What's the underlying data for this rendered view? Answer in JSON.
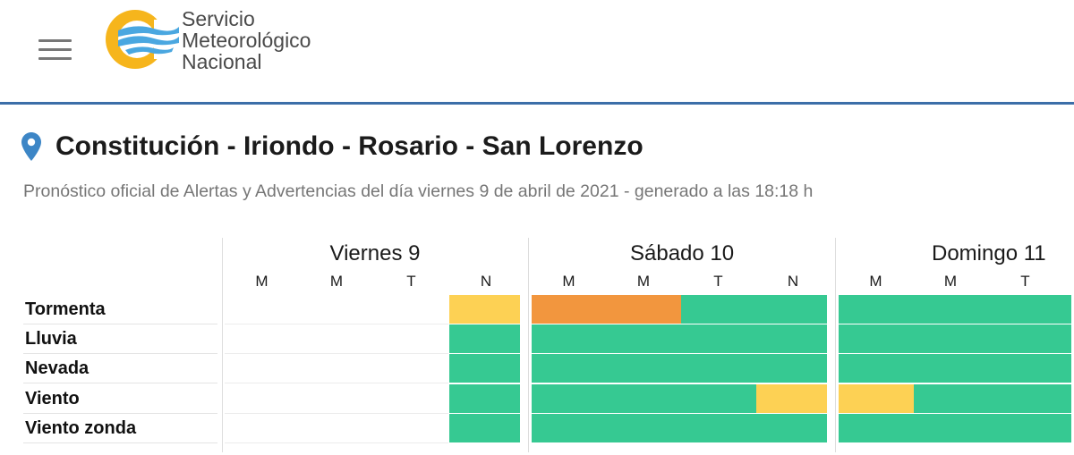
{
  "header": {
    "brand_lines": [
      "Servicio",
      "Meteorológico",
      "Nacional"
    ]
  },
  "location": {
    "title": "Constitución - Iriondo - Rosario - San Lorenzo",
    "subtitle": "Pronóstico oficial de Alertas y Advertencias del día viernes 9 de abril de 2021 - generado a las 18:18 h"
  },
  "colors": {
    "green": "#36c992",
    "yellow": "#fdd154",
    "orange": "#f2963e",
    "brand_blue": "#3c6ea8",
    "logo_yellow": "#f6b51c",
    "logo_blue": "#4aa7e0"
  },
  "forecast": {
    "days": [
      {
        "name": "Viernes 9",
        "periods": [
          "M",
          "M",
          "T",
          "N"
        ]
      },
      {
        "name": "Sábado 10",
        "periods": [
          "M",
          "M",
          "T",
          "N"
        ]
      },
      {
        "name": "Domingo 11",
        "periods": [
          "M",
          "M",
          "T"
        ]
      }
    ],
    "rows": [
      {
        "label": "Tormenta",
        "levels": [
          "none",
          "none",
          "none",
          "yellow",
          "orange",
          "orange",
          "green",
          "green",
          "green",
          "green",
          "green"
        ]
      },
      {
        "label": "Lluvia",
        "levels": [
          "none",
          "none",
          "none",
          "green",
          "green",
          "green",
          "green",
          "green",
          "green",
          "green",
          "green"
        ]
      },
      {
        "label": "Nevada",
        "levels": [
          "none",
          "none",
          "none",
          "green",
          "green",
          "green",
          "green",
          "green",
          "green",
          "green",
          "green"
        ]
      },
      {
        "label": "Viento",
        "levels": [
          "none",
          "none",
          "none",
          "green",
          "green",
          "green",
          "green",
          "yellow",
          "yellow",
          "green",
          "green"
        ]
      },
      {
        "label": "Viento zonda",
        "levels": [
          "none",
          "none",
          "none",
          "green",
          "green",
          "green",
          "green",
          "green",
          "green",
          "green",
          "green"
        ]
      }
    ]
  }
}
